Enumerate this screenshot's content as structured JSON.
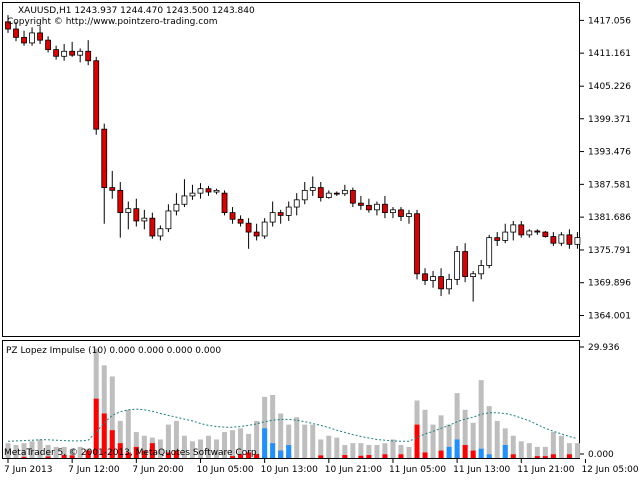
{
  "window": {
    "symbol_line": "XAUUSD,H1  1243.937 1244.470 1243.500 1243.840",
    "copyright": "Copyright © http://www.pointzero-trading.com",
    "watermark": "MetaTrader 5, © 2001-2013, MetaQuotes Software Corp."
  },
  "indicator": {
    "label": "PZ Lopez Impulse (10) 0.000 0.000 0.000 0.000",
    "scale_labels": [
      "29.936",
      "0.000"
    ],
    "colors": {
      "total": "#bebebe",
      "bear": "#ff0000",
      "bull": "#1e90ff",
      "signal": "#1a7f7f"
    }
  },
  "chart_data": [
    {
      "type": "candlestick",
      "title": "XAUUSD,H1",
      "y_ticks": [
        1417.056,
        1411.161,
        1405.226,
        1399.371,
        1393.476,
        1387.581,
        1381.686,
        1375.791,
        1369.896,
        1364.001
      ],
      "ylim": [
        1360.5,
        1420.0
      ],
      "x_tick_labels": [
        "7 Jun 2013",
        "7 Jun 12:00",
        "7 Jun 20:00",
        "10 Jun 05:00",
        "10 Jun 13:00",
        "10 Jun 21:00",
        "11 Jun 05:00",
        "11 Jun 13:00",
        "11 Jun 21:00",
        "12 Jun 05:00"
      ],
      "candles": [
        {
          "o": 1416.8,
          "h": 1418.0,
          "l": 1414.8,
          "c": 1415.5
        },
        {
          "o": 1415.5,
          "h": 1416.8,
          "l": 1413.3,
          "c": 1414.0
        },
        {
          "o": 1414.0,
          "h": 1415.2,
          "l": 1412.5,
          "c": 1413.0
        },
        {
          "o": 1413.0,
          "h": 1415.8,
          "l": 1412.5,
          "c": 1414.8
        },
        {
          "o": 1414.8,
          "h": 1416.0,
          "l": 1412.8,
          "c": 1413.5
        },
        {
          "o": 1413.5,
          "h": 1414.2,
          "l": 1411.3,
          "c": 1411.8
        },
        {
          "o": 1411.8,
          "h": 1412.5,
          "l": 1410.0,
          "c": 1410.6
        },
        {
          "o": 1410.6,
          "h": 1412.8,
          "l": 1409.8,
          "c": 1411.5
        },
        {
          "o": 1411.5,
          "h": 1413.2,
          "l": 1410.5,
          "c": 1410.8
        },
        {
          "o": 1410.8,
          "h": 1412.0,
          "l": 1409.5,
          "c": 1411.5
        },
        {
          "o": 1411.5,
          "h": 1413.5,
          "l": 1409.0,
          "c": 1409.8
        },
        {
          "o": 1409.8,
          "h": 1410.5,
          "l": 1396.5,
          "c": 1397.5
        },
        {
          "o": 1397.5,
          "h": 1398.5,
          "l": 1380.5,
          "c": 1387.0
        },
        {
          "o": 1387.0,
          "h": 1390.0,
          "l": 1385.0,
          "c": 1386.5
        },
        {
          "o": 1386.5,
          "h": 1388.0,
          "l": 1378.0,
          "c": 1382.5
        },
        {
          "o": 1382.5,
          "h": 1384.5,
          "l": 1379.5,
          "c": 1383.2
        },
        {
          "o": 1383.2,
          "h": 1385.0,
          "l": 1380.0,
          "c": 1381.0
        },
        {
          "o": 1381.0,
          "h": 1383.0,
          "l": 1379.5,
          "c": 1381.5
        },
        {
          "o": 1381.5,
          "h": 1382.5,
          "l": 1377.8,
          "c": 1378.3
        },
        {
          "o": 1378.3,
          "h": 1380.2,
          "l": 1377.5,
          "c": 1379.6
        },
        {
          "o": 1379.6,
          "h": 1384.0,
          "l": 1379.0,
          "c": 1382.8
        },
        {
          "o": 1382.8,
          "h": 1386.0,
          "l": 1382.0,
          "c": 1384.0
        },
        {
          "o": 1384.0,
          "h": 1388.5,
          "l": 1383.5,
          "c": 1385.5
        },
        {
          "o": 1385.5,
          "h": 1387.5,
          "l": 1384.8,
          "c": 1386.0
        },
        {
          "o": 1386.0,
          "h": 1387.8,
          "l": 1385.0,
          "c": 1386.8
        },
        {
          "o": 1386.8,
          "h": 1387.3,
          "l": 1385.5,
          "c": 1386.2
        },
        {
          "o": 1386.2,
          "h": 1386.8,
          "l": 1385.8,
          "c": 1386.5
        },
        {
          "o": 1386.0,
          "h": 1386.5,
          "l": 1382.0,
          "c": 1382.5
        },
        {
          "o": 1382.5,
          "h": 1383.5,
          "l": 1380.5,
          "c": 1381.3
        },
        {
          "o": 1381.3,
          "h": 1382.0,
          "l": 1380.0,
          "c": 1380.6
        },
        {
          "o": 1380.6,
          "h": 1381.5,
          "l": 1376.0,
          "c": 1379.0
        },
        {
          "o": 1379.0,
          "h": 1380.5,
          "l": 1377.5,
          "c": 1378.3
        },
        {
          "o": 1378.3,
          "h": 1381.5,
          "l": 1377.8,
          "c": 1380.8
        },
        {
          "o": 1380.8,
          "h": 1384.5,
          "l": 1380.0,
          "c": 1382.5
        },
        {
          "o": 1382.5,
          "h": 1383.0,
          "l": 1380.5,
          "c": 1382.0
        },
        {
          "o": 1382.0,
          "h": 1384.5,
          "l": 1381.0,
          "c": 1383.5
        },
        {
          "o": 1383.5,
          "h": 1386.0,
          "l": 1382.0,
          "c": 1384.8
        },
        {
          "o": 1384.8,
          "h": 1388.0,
          "l": 1384.0,
          "c": 1386.5
        },
        {
          "o": 1386.5,
          "h": 1389.0,
          "l": 1385.5,
          "c": 1387.0
        },
        {
          "o": 1387.0,
          "h": 1388.0,
          "l": 1384.5,
          "c": 1385.2
        },
        {
          "o": 1385.2,
          "h": 1386.5,
          "l": 1385.0,
          "c": 1386.0
        },
        {
          "o": 1386.0,
          "h": 1386.3,
          "l": 1385.5,
          "c": 1385.9
        },
        {
          "o": 1385.9,
          "h": 1387.5,
          "l": 1385.5,
          "c": 1386.5
        },
        {
          "o": 1386.5,
          "h": 1387.0,
          "l": 1383.5,
          "c": 1384.2
        },
        {
          "o": 1384.2,
          "h": 1385.5,
          "l": 1383.0,
          "c": 1383.8
        },
        {
          "o": 1383.8,
          "h": 1385.0,
          "l": 1382.5,
          "c": 1383.0
        },
        {
          "o": 1383.0,
          "h": 1384.5,
          "l": 1382.0,
          "c": 1384.0
        },
        {
          "o": 1384.0,
          "h": 1385.5,
          "l": 1381.5,
          "c": 1382.5
        },
        {
          "o": 1382.5,
          "h": 1383.5,
          "l": 1381.5,
          "c": 1383.0
        },
        {
          "o": 1383.0,
          "h": 1383.5,
          "l": 1381.0,
          "c": 1381.8
        },
        {
          "o": 1381.8,
          "h": 1383.0,
          "l": 1380.5,
          "c": 1382.3
        },
        {
          "o": 1382.3,
          "h": 1383.0,
          "l": 1370.5,
          "c": 1371.5
        },
        {
          "o": 1371.5,
          "h": 1372.5,
          "l": 1369.5,
          "c": 1370.3
        },
        {
          "o": 1370.3,
          "h": 1372.0,
          "l": 1369.0,
          "c": 1371.0
        },
        {
          "o": 1371.0,
          "h": 1372.5,
          "l": 1367.5,
          "c": 1368.8
        },
        {
          "o": 1368.8,
          "h": 1371.5,
          "l": 1367.8,
          "c": 1370.5
        },
        {
          "o": 1370.5,
          "h": 1376.5,
          "l": 1369.5,
          "c": 1375.5
        },
        {
          "o": 1375.5,
          "h": 1377.0,
          "l": 1370.0,
          "c": 1371.0
        },
        {
          "o": 1371.0,
          "h": 1372.0,
          "l": 1366.5,
          "c": 1371.5
        },
        {
          "o": 1371.5,
          "h": 1374.0,
          "l": 1370.5,
          "c": 1373.0
        },
        {
          "o": 1373.0,
          "h": 1378.5,
          "l": 1372.5,
          "c": 1378.0
        },
        {
          "o": 1378.0,
          "h": 1379.0,
          "l": 1376.5,
          "c": 1377.5
        },
        {
          "o": 1377.5,
          "h": 1380.5,
          "l": 1377.0,
          "c": 1379.0
        },
        {
          "o": 1379.0,
          "h": 1381.0,
          "l": 1377.5,
          "c": 1380.3
        },
        {
          "o": 1380.3,
          "h": 1381.0,
          "l": 1378.0,
          "c": 1378.5
        },
        {
          "o": 1378.5,
          "h": 1379.5,
          "l": 1378.0,
          "c": 1379.2
        },
        {
          "o": 1379.2,
          "h": 1379.5,
          "l": 1378.5,
          "c": 1379.0
        },
        {
          "o": 1379.0,
          "h": 1379.2,
          "l": 1378.0,
          "c": 1378.2
        },
        {
          "o": 1378.2,
          "h": 1379.0,
          "l": 1376.5,
          "c": 1377.0
        },
        {
          "o": 1377.0,
          "h": 1379.0,
          "l": 1376.5,
          "c": 1378.5
        },
        {
          "o": 1378.5,
          "h": 1379.5,
          "l": 1376.0,
          "c": 1376.8
        },
        {
          "o": 1376.8,
          "h": 1379.0,
          "l": 1376.0,
          "c": 1378.0
        }
      ]
    },
    {
      "type": "bar",
      "title": "PZ Lopez Impulse (10)",
      "ylim": [
        0,
        29.936
      ],
      "series": [
        {
          "values": [
            4.0,
            3.5,
            4.0,
            4.5,
            5.0,
            3.5,
            3.0,
            3.0,
            2.5,
            3.0,
            2.5,
            29.5,
            25.0,
            22.0,
            10.0,
            13.0,
            7.0,
            6.0,
            5.5,
            5.0,
            9.0,
            10.0,
            6.0,
            4.5,
            5.0,
            6.0,
            5.0,
            7.0,
            7.5,
            8.0,
            6.5,
            10.0,
            16.5,
            17.0,
            12.0,
            9.0,
            11.0,
            9.0,
            9.0,
            5.0,
            6.0,
            5.5,
            3.5,
            4.0,
            4.0,
            3.5,
            3.5,
            4.0,
            5.0,
            3.5,
            3.0,
            15.5,
            13.0,
            9.0,
            11.5,
            9.0,
            17.5,
            13.0,
            9.5,
            21.0,
            14.0,
            10.0,
            8.0,
            6.0,
            4.5,
            4.0,
            3.0,
            3.0,
            7.0,
            6.0,
            4.0,
            4.0
          ]
        },
        {
          "values": [
            0.0,
            0.0,
            0.3,
            0.0,
            0.0,
            0.4,
            0.0,
            0.8,
            0.7,
            0.0,
            2.0,
            16.0,
            12.0,
            7.5,
            4.0,
            1.5,
            3.0,
            2.0,
            4.0,
            0.0,
            1.5,
            2.0,
            0.0,
            0.0,
            0.0,
            0.0,
            0.0,
            0.0,
            0.5,
            1.0,
            1.5,
            1.0,
            0.5,
            0.0,
            2.0,
            1.0,
            0.0,
            0.0,
            0.0,
            0.7,
            0.0,
            0.0,
            0.8,
            0.0,
            0.6,
            0.8,
            0.0,
            1.0,
            0.0,
            1.0,
            0.0,
            9.0,
            1.5,
            0.0,
            2.0,
            0.0,
            1.0,
            3.5,
            2.0,
            0.0,
            0.0,
            0.0,
            0.0,
            1.0,
            0.0,
            0.0,
            0.5,
            0.5,
            1.0,
            0.0,
            1.0,
            0.0
          ]
        },
        {
          "values": [
            0.0,
            0.0,
            0.0,
            0.0,
            0.0,
            0.0,
            0.0,
            0.0,
            0.0,
            0.0,
            0.0,
            0.0,
            0.0,
            0.0,
            0.0,
            0.0,
            0.0,
            0.0,
            0.0,
            0.0,
            0.0,
            0.0,
            0.0,
            0.0,
            0.0,
            0.0,
            0.0,
            0.0,
            0.0,
            0.0,
            0.0,
            0.0,
            8.0,
            4.0,
            2.0,
            3.5,
            0.0,
            0.0,
            0.0,
            0.0,
            0.0,
            0.0,
            0.0,
            0.0,
            0.0,
            0.0,
            0.0,
            0.0,
            0.0,
            0.0,
            0.0,
            0.0,
            0.0,
            0.0,
            0.0,
            3.0,
            5.0,
            0.0,
            0.0,
            2.5,
            1.0,
            0.0,
            3.5,
            0.0,
            0.0,
            0.0,
            0.0,
            0.0,
            0.0,
            0.0,
            0.0,
            0.0
          ]
        },
        {
          "values": [
            0.0,
            0.0,
            0.0,
            0.0,
            0.0,
            0.0,
            0.0,
            0.0,
            0.0,
            0.0,
            0.0,
            0.0,
            0.0,
            0.0,
            0.0,
            0.0,
            0.0,
            0.0,
            0.0,
            0.0,
            0.0,
            0.0,
            0.0,
            0.0,
            0.0,
            0.0,
            0.0,
            0.0,
            0.0,
            0.0,
            0.0,
            0.0,
            0.0,
            0.0,
            0.0,
            0.0,
            0.0,
            0.0,
            0.0,
            0.0,
            0.0,
            0.0,
            0.0,
            0.0,
            0.0,
            0.0,
            0.0,
            0.0,
            0.0,
            0.0,
            0.0,
            0.0,
            0.0,
            0.0,
            0.0,
            0.0,
            0.0,
            0.0,
            0.0,
            0.0,
            0.0,
            0.0,
            0.0,
            0.0,
            0.0,
            0.0,
            0.0,
            0.0,
            0.0,
            0.0,
            0.0,
            0.0
          ]
        }
      ],
      "signal_line": [
        4.5,
        4.6,
        4.7,
        4.8,
        4.9,
        4.9,
        4.8,
        4.7,
        4.6,
        4.6,
        4.8,
        7.0,
        9.5,
        11.5,
        12.5,
        13.0,
        13.2,
        13.0,
        12.6,
        12.0,
        11.5,
        11.0,
        10.5,
        10.0,
        9.3,
        8.8,
        8.5,
        8.3,
        8.3,
        8.5,
        8.8,
        9.2,
        9.8,
        10.2,
        10.4,
        10.4,
        10.2,
        9.8,
        9.3,
        8.8,
        8.2,
        7.5,
        6.9,
        6.3,
        5.8,
        5.4,
        5.0,
        4.8,
        4.6,
        4.5,
        4.5,
        5.5,
        6.5,
        7.2,
        8.0,
        8.8,
        9.8,
        10.5,
        11.0,
        11.8,
        12.2,
        12.2,
        12.0,
        11.5,
        10.8,
        10.0,
        9.0,
        8.0,
        7.2,
        6.5,
        5.8,
        5.2
      ]
    }
  ]
}
